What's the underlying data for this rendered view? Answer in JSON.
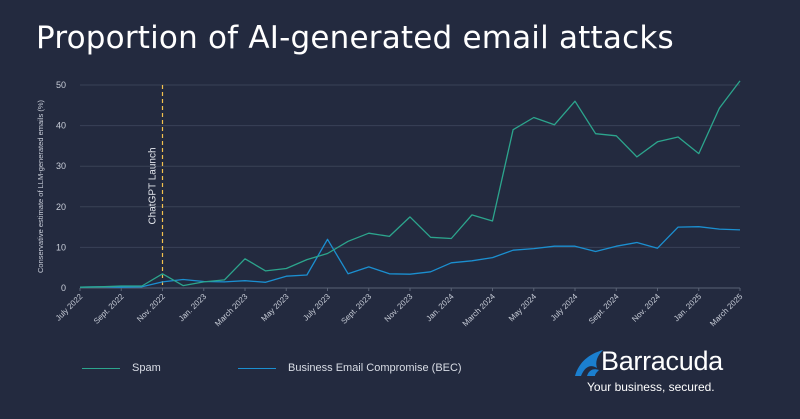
{
  "title": "Proportion of AI-generated email attacks",
  "chart_data": {
    "type": "line",
    "title": "Proportion of AI-generated email attacks",
    "ylabel": "Conservative estimate of LLM-generated emails (%)",
    "xlabel": "",
    "ylim": [
      0,
      50
    ],
    "yticks": [
      0,
      10,
      20,
      30,
      40,
      50
    ],
    "grid": true,
    "legend_position": "bottom-left",
    "x": [
      "July 2022",
      "Aug. 2022",
      "Sept. 2022",
      "Oct. 2022",
      "Nov. 2022",
      "Dec. 2022",
      "Jan. 2023",
      "Feb. 2023",
      "March 2023",
      "April 2023",
      "May 2023",
      "June 2023",
      "July 2023",
      "Aug. 2023",
      "Sept. 2023",
      "Oct. 2023",
      "Nov. 2023",
      "Dec. 2023",
      "Jan. 2024",
      "Feb. 2024",
      "March 2024",
      "April 2024",
      "May 2024",
      "June 2024",
      "July 2024",
      "Aug. 2024",
      "Sept. 2024",
      "Oct. 2024",
      "Nov. 2024",
      "Dec. 2024",
      "Jan. 2025",
      "Feb. 2025",
      "March 2025"
    ],
    "xtick_labels": [
      "July 2022",
      "Sept. 2022",
      "Nov. 2022",
      "Jan. 2023",
      "March 2023",
      "May 2023",
      "July 2023",
      "Sept. 2023",
      "Nov. 2023",
      "Jan. 2024",
      "March 2024",
      "May 2024",
      "July 2024",
      "Sept. 2024",
      "Nov. 2024",
      "Jan. 2025",
      "March 2025"
    ],
    "series": [
      {
        "name": "Spam",
        "color": "#2ca58d",
        "values": [
          0.2,
          0.3,
          0.5,
          0.5,
          3.5,
          0.6,
          1.5,
          2.0,
          7.2,
          4.2,
          4.8,
          7.0,
          8.5,
          11.5,
          13.5,
          12.7,
          17.5,
          12.5,
          12.2,
          18.0,
          16.5,
          39.0,
          42.0,
          40.2,
          46.0,
          38.0,
          37.5,
          32.3,
          36.0,
          37.2,
          33.1,
          44.3,
          51.0
        ]
      },
      {
        "name": "Business Email Compromise (BEC)",
        "color": "#1b8fd0",
        "values": [
          0.2,
          0.3,
          0.2,
          0.3,
          1.5,
          2.1,
          1.6,
          1.5,
          1.8,
          1.4,
          2.9,
          3.2,
          12.0,
          3.5,
          5.2,
          3.5,
          3.4,
          4.0,
          6.2,
          6.7,
          7.5,
          9.3,
          9.7,
          10.3,
          10.3,
          9.0,
          10.3,
          11.2,
          9.8,
          15.0,
          15.1,
          14.5,
          14.3
        ]
      }
    ],
    "annotations": [
      {
        "label": "ChatGPT Launch",
        "x": "Nov. 2022",
        "color": "#f2c14e",
        "style": "dashed vertical line"
      }
    ]
  },
  "brand": {
    "name": "Barracuda",
    "tagline": "Your business, secured.",
    "mark_color": "#1b7fcf"
  }
}
